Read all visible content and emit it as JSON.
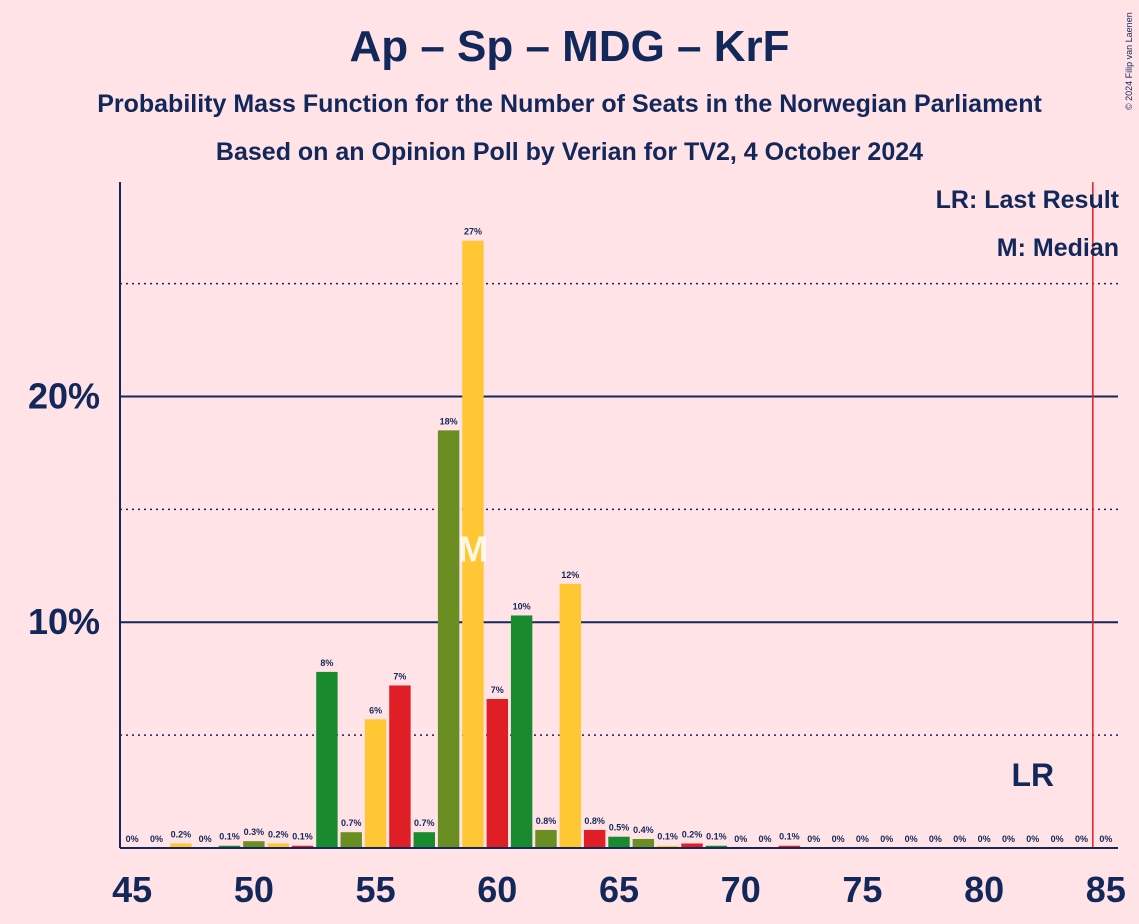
{
  "header": {
    "title": "Ap – Sp – MDG – KrF",
    "subtitle1": "Probability Mass Function for the Number of Seats in the Norwegian Parliament",
    "subtitle2": "Based on an Opinion Poll by Verian for TV2, 4 October 2024",
    "copyright": "© 2024 Filip van Laenen"
  },
  "legend": {
    "last_result": "LR: Last Result",
    "median": "M: Median"
  },
  "colors": {
    "background": "#FFE3E6",
    "text": "#12285A",
    "green": "#1A8A2E",
    "olive": "#6B8E23",
    "yellow": "#FFC733",
    "red": "#E01E25",
    "last_result_line": "#E01E25"
  },
  "chart_data": {
    "type": "bar",
    "x": [
      45,
      46,
      47,
      48,
      49,
      50,
      51,
      52,
      53,
      54,
      55,
      56,
      57,
      58,
      59,
      60,
      61,
      62,
      63,
      64,
      65,
      66,
      67,
      68,
      69,
      70,
      71,
      72,
      73,
      74,
      75,
      76,
      77,
      78,
      79,
      80,
      81,
      82,
      83,
      84,
      85
    ],
    "values": [
      0,
      0,
      0.2,
      0,
      0.1,
      0.3,
      0.2,
      0.1,
      7.8,
      0.7,
      5.7,
      7.2,
      0.7,
      18.5,
      26.9,
      6.6,
      10.3,
      0.8,
      11.7,
      0.8,
      0.5,
      0.4,
      0.1,
      0.2,
      0.1,
      0,
      0,
      0.1,
      0,
      0,
      0,
      0,
      0,
      0,
      0,
      0,
      0,
      0,
      0,
      0,
      0
    ],
    "labels": [
      "0%",
      "0%",
      "0.2%",
      "0%",
      "0.1%",
      "0.3%",
      "0.2%",
      "0.1%",
      "8%",
      "0.7%",
      "6%",
      "7%",
      "0.7%",
      "18%",
      "27%",
      "7%",
      "10%",
      "0.8%",
      "12%",
      "0.8%",
      "0.5%",
      "0.4%",
      "0.1%",
      "0.2%",
      "0.1%",
      "0%",
      "0%",
      "0.1%",
      "0%",
      "0%",
      "0%",
      "0%",
      "0%",
      "0%",
      "0%",
      "0%",
      "0%",
      "0%",
      "0%",
      "0%",
      "0%"
    ],
    "bar_colors": [
      "green",
      "olive",
      "yellow",
      "red",
      "green",
      "olive",
      "yellow",
      "red",
      "green",
      "olive",
      "yellow",
      "red",
      "green",
      "olive",
      "yellow",
      "red",
      "green",
      "olive",
      "yellow",
      "red",
      "green",
      "olive",
      "yellow",
      "red",
      "green",
      "olive",
      "yellow",
      "red",
      "green",
      "olive",
      "yellow",
      "red",
      "green",
      "olive",
      "yellow",
      "red",
      "green",
      "olive",
      "yellow",
      "red",
      "green"
    ],
    "xticks": [
      "45",
      "50",
      "55",
      "60",
      "65",
      "70",
      "75",
      "80",
      "85"
    ],
    "xtick_values": [
      45,
      50,
      55,
      60,
      65,
      70,
      75,
      80,
      85
    ],
    "yticks": [
      "10%",
      "20%"
    ],
    "ytick_values": [
      10,
      20
    ],
    "y_dotted_lines": [
      5,
      15,
      25
    ],
    "ylim": [
      0,
      29.5
    ],
    "xlim": [
      44.5,
      85.5
    ],
    "median": {
      "x": 59,
      "label": "M",
      "y": 13.4
    },
    "last_result": {
      "x": 85,
      "label": "LR"
    },
    "legend_position": "top-right",
    "grid": true
  }
}
